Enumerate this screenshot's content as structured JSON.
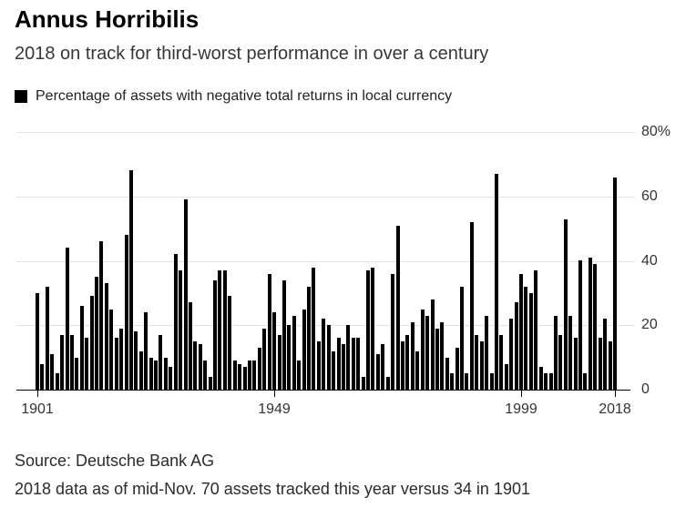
{
  "header": {
    "title": "Annus Horribilis",
    "subtitle": "2018 on track for third-worst performance in over a century"
  },
  "legend": {
    "label": "Percentage of assets with negative total returns in local currency",
    "swatch_color": "#000000"
  },
  "footer": {
    "source": "Source: Deutsche Bank AG",
    "note": "2018 data as of mid-Nov. 70 assets tracked this year versus 34 in 1901"
  },
  "chart_data": {
    "type": "bar",
    "title": "Annus Horribilis",
    "xlabel": "",
    "ylabel": "Percentage of assets with negative total returns in local currency",
    "bar_color": "#000000",
    "grid": "horizontal",
    "legend_position": "top-left",
    "ylim": [
      0,
      80
    ],
    "y_ticks": [
      {
        "value": 80,
        "label": "80%"
      },
      {
        "value": 60,
        "label": "60"
      },
      {
        "value": 40,
        "label": "40"
      },
      {
        "value": 20,
        "label": "20"
      },
      {
        "value": 0,
        "label": "0"
      }
    ],
    "x_tick_years": [
      1901,
      1949,
      1999,
      2018
    ],
    "start_year": 1901,
    "end_year": 2018,
    "categories": [
      1901,
      1902,
      1903,
      1904,
      1905,
      1906,
      1907,
      1908,
      1909,
      1910,
      1911,
      1912,
      1913,
      1914,
      1915,
      1916,
      1917,
      1918,
      1919,
      1920,
      1921,
      1922,
      1923,
      1924,
      1925,
      1926,
      1927,
      1928,
      1929,
      1930,
      1931,
      1932,
      1933,
      1934,
      1935,
      1936,
      1937,
      1938,
      1939,
      1940,
      1941,
      1942,
      1943,
      1944,
      1945,
      1946,
      1947,
      1948,
      1949,
      1950,
      1951,
      1952,
      1953,
      1954,
      1955,
      1956,
      1957,
      1958,
      1959,
      1960,
      1961,
      1962,
      1963,
      1964,
      1965,
      1966,
      1967,
      1968,
      1969,
      1970,
      1971,
      1972,
      1973,
      1974,
      1975,
      1976,
      1977,
      1978,
      1979,
      1980,
      1981,
      1982,
      1983,
      1984,
      1985,
      1986,
      1987,
      1988,
      1989,
      1990,
      1991,
      1992,
      1993,
      1994,
      1995,
      1996,
      1997,
      1998,
      1999,
      2000,
      2001,
      2002,
      2003,
      2004,
      2005,
      2006,
      2007,
      2008,
      2009,
      2010,
      2011,
      2012,
      2013,
      2014,
      2015,
      2016,
      2017,
      2018
    ],
    "values": [
      30,
      8,
      32,
      11,
      5,
      17,
      44,
      17,
      10,
      26,
      16,
      29,
      35,
      46,
      33,
      25,
      16,
      19,
      48,
      68,
      18,
      12,
      24,
      10,
      9,
      17,
      10,
      7,
      42,
      37,
      59,
      27,
      15,
      14,
      9,
      4,
      34,
      37,
      37,
      29,
      9,
      8,
      7,
      9,
      9,
      13,
      19,
      36,
      24,
      17,
      34,
      20,
      23,
      9,
      25,
      32,
      38,
      15,
      22,
      20,
      12,
      16,
      14,
      20,
      16,
      16,
      4,
      37,
      38,
      11,
      14,
      4,
      36,
      51,
      15,
      17,
      21,
      12,
      25,
      23,
      28,
      19,
      21,
      10,
      5,
      13,
      32,
      5,
      52,
      17,
      15,
      23,
      5,
      67,
      17,
      8,
      22,
      27,
      36,
      32,
      30,
      37,
      7,
      5,
      5,
      23,
      17,
      53,
      23,
      16,
      40,
      5,
      41,
      39,
      16,
      22,
      15,
      66
    ]
  }
}
